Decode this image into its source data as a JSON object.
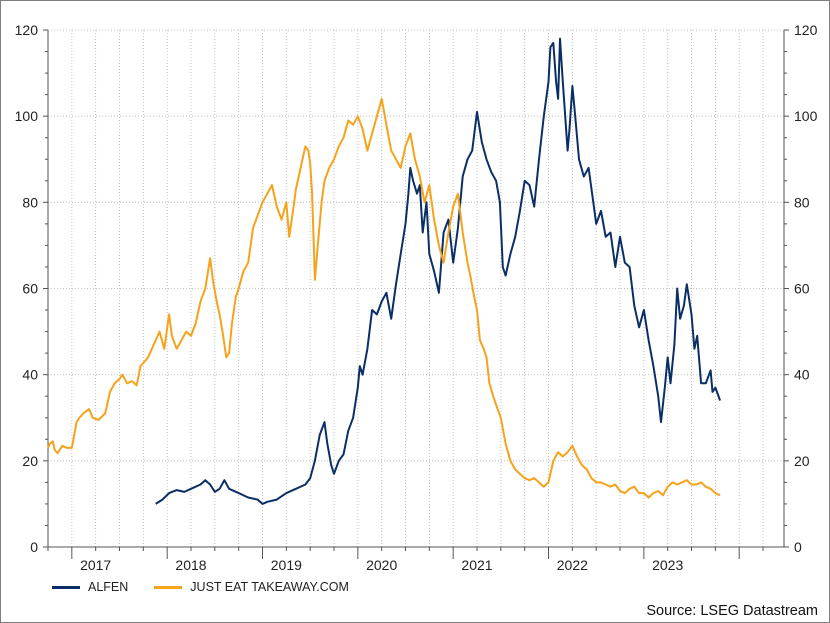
{
  "source": "Source: LSEG Datastream",
  "colors": {
    "alfen": "#0a2f66",
    "jet": "#f7a21b",
    "grid": "#b5b5b5",
    "axis": "#555555"
  },
  "chart_data": {
    "type": "line",
    "title": "",
    "xlabel": "",
    "ylabel": "",
    "xlim": [
      2016.25,
      2023.97
    ],
    "ylim": [
      0,
      120
    ],
    "yticks": [
      0,
      20,
      40,
      60,
      80,
      100,
      120
    ],
    "xtick_labels": [
      "2017",
      "2018",
      "2019",
      "2020",
      "2021",
      "2022",
      "2023"
    ],
    "xtick_label_positions": [
      2016.75,
      2017.75,
      2018.75,
      2019.75,
      2020.75,
      2021.75,
      2022.75
    ],
    "year_boundaries": [
      2016.5,
      2017.5,
      2018.5,
      2019.5,
      2020.5,
      2021.5,
      2022.5,
      2023.5
    ],
    "grid": true,
    "dual_y_axis": true,
    "legend_position": "bottom-left",
    "series": [
      {
        "name": "ALFEN",
        "color": "#0a2f66",
        "points": [
          [
            2017.38,
            10.0
          ],
          [
            2017.45,
            11.0
          ],
          [
            2017.52,
            12.5
          ],
          [
            2017.6,
            13.2
          ],
          [
            2017.68,
            12.8
          ],
          [
            2017.75,
            13.5
          ],
          [
            2017.85,
            14.5
          ],
          [
            2017.9,
            15.5
          ],
          [
            2017.95,
            14.5
          ],
          [
            2018.0,
            12.8
          ],
          [
            2018.05,
            13.5
          ],
          [
            2018.1,
            15.5
          ],
          [
            2018.15,
            13.5
          ],
          [
            2018.25,
            12.5
          ],
          [
            2018.35,
            11.5
          ],
          [
            2018.45,
            11.0
          ],
          [
            2018.5,
            10.0
          ],
          [
            2018.55,
            10.5
          ],
          [
            2018.65,
            11.0
          ],
          [
            2018.75,
            12.5
          ],
          [
            2018.85,
            13.5
          ],
          [
            2018.95,
            14.5
          ],
          [
            2019.0,
            16.0
          ],
          [
            2019.05,
            20.0
          ],
          [
            2019.1,
            26.0
          ],
          [
            2019.15,
            29.0
          ],
          [
            2019.18,
            24.0
          ],
          [
            2019.22,
            19.0
          ],
          [
            2019.25,
            17.0
          ],
          [
            2019.3,
            20.0
          ],
          [
            2019.35,
            21.5
          ],
          [
            2019.4,
            27.0
          ],
          [
            2019.45,
            30.0
          ],
          [
            2019.5,
            37.0
          ],
          [
            2019.52,
            42.0
          ],
          [
            2019.55,
            40.0
          ],
          [
            2019.6,
            46.0
          ],
          [
            2019.65,
            55.0
          ],
          [
            2019.7,
            54.0
          ],
          [
            2019.75,
            57.0
          ],
          [
            2019.8,
            59.0
          ],
          [
            2019.85,
            53.0
          ],
          [
            2019.9,
            61.0
          ],
          [
            2019.95,
            68.0
          ],
          [
            2020.0,
            75.0
          ],
          [
            2020.03,
            82.0
          ],
          [
            2020.05,
            88.0
          ],
          [
            2020.08,
            85.0
          ],
          [
            2020.12,
            82.0
          ],
          [
            2020.15,
            84.0
          ],
          [
            2020.18,
            73.0
          ],
          [
            2020.22,
            80.0
          ],
          [
            2020.25,
            68.0
          ],
          [
            2020.3,
            64.0
          ],
          [
            2020.35,
            59.0
          ],
          [
            2020.4,
            73.0
          ],
          [
            2020.45,
            76.0
          ],
          [
            2020.5,
            66.0
          ],
          [
            2020.55,
            74.0
          ],
          [
            2020.6,
            86.0
          ],
          [
            2020.65,
            90.0
          ],
          [
            2020.7,
            92.0
          ],
          [
            2020.75,
            101.0
          ],
          [
            2020.8,
            94.0
          ],
          [
            2020.85,
            90.0
          ],
          [
            2020.9,
            87.0
          ],
          [
            2020.95,
            85.0
          ],
          [
            2020.99,
            80.0
          ],
          [
            2021.02,
            65.0
          ],
          [
            2021.05,
            63.0
          ],
          [
            2021.1,
            68.0
          ],
          [
            2021.15,
            72.0
          ],
          [
            2021.2,
            78.0
          ],
          [
            2021.25,
            85.0
          ],
          [
            2021.3,
            84.0
          ],
          [
            2021.35,
            79.0
          ],
          [
            2021.4,
            90.0
          ],
          [
            2021.45,
            100.0
          ],
          [
            2021.5,
            108.0
          ],
          [
            2021.52,
            116.0
          ],
          [
            2021.55,
            117.0
          ],
          [
            2021.58,
            108.0
          ],
          [
            2021.6,
            104.0
          ],
          [
            2021.62,
            118.0
          ],
          [
            2021.65,
            108.0
          ],
          [
            2021.7,
            92.0
          ],
          [
            2021.72,
            97.0
          ],
          [
            2021.75,
            107.0
          ],
          [
            2021.78,
            100.0
          ],
          [
            2021.82,
            90.0
          ],
          [
            2021.87,
            86.0
          ],
          [
            2021.92,
            88.0
          ],
          [
            2021.97,
            80.0
          ],
          [
            2022.0,
            75.0
          ],
          [
            2022.05,
            78.0
          ],
          [
            2022.1,
            72.0
          ],
          [
            2022.15,
            73.0
          ],
          [
            2022.2,
            65.0
          ],
          [
            2022.25,
            72.0
          ],
          [
            2022.3,
            66.0
          ],
          [
            2022.35,
            65.0
          ],
          [
            2022.4,
            56.0
          ],
          [
            2022.45,
            51.0
          ],
          [
            2022.5,
            55.0
          ],
          [
            2022.55,
            48.0
          ],
          [
            2022.6,
            42.0
          ],
          [
            2022.65,
            35.0
          ],
          [
            2022.68,
            29.0
          ],
          [
            2022.72,
            37.0
          ],
          [
            2022.75,
            44.0
          ],
          [
            2022.78,
            38.0
          ],
          [
            2022.82,
            47.0
          ],
          [
            2022.85,
            60.0
          ],
          [
            2022.88,
            53.0
          ],
          [
            2022.92,
            56.0
          ],
          [
            2022.95,
            61.0
          ],
          [
            2023.0,
            54.0
          ],
          [
            2023.03,
            46.0
          ],
          [
            2023.06,
            49.0
          ],
          [
            2023.1,
            38.0
          ],
          [
            2023.15,
            38.0
          ],
          [
            2023.2,
            41.0
          ],
          [
            2023.22,
            36.0
          ],
          [
            2023.25,
            37.0
          ],
          [
            2023.3,
            34.0
          ]
        ]
      },
      {
        "name": "JUST EAT TAKEAWAY.COM",
        "color": "#f7a21b",
        "points": [
          [
            2016.25,
            23.0
          ],
          [
            2016.27,
            24.0
          ],
          [
            2016.3,
            24.5
          ],
          [
            2016.32,
            22.5
          ],
          [
            2016.35,
            21.8
          ],
          [
            2016.4,
            23.5
          ],
          [
            2016.45,
            23.0
          ],
          [
            2016.5,
            23.0
          ],
          [
            2016.55,
            29.0
          ],
          [
            2016.58,
            30.0
          ],
          [
            2016.62,
            31.0
          ],
          [
            2016.68,
            32.0
          ],
          [
            2016.72,
            30.0
          ],
          [
            2016.78,
            29.5
          ],
          [
            2016.85,
            31.0
          ],
          [
            2016.9,
            36.0
          ],
          [
            2016.95,
            38.0
          ],
          [
            2017.0,
            39.0
          ],
          [
            2017.03,
            40.0
          ],
          [
            2017.08,
            38.0
          ],
          [
            2017.13,
            38.5
          ],
          [
            2017.18,
            37.5
          ],
          [
            2017.22,
            42.0
          ],
          [
            2017.3,
            44.0
          ],
          [
            2017.38,
            48.0
          ],
          [
            2017.42,
            50.0
          ],
          [
            2017.47,
            46.0
          ],
          [
            2017.52,
            54.0
          ],
          [
            2017.55,
            49.0
          ],
          [
            2017.6,
            46.0
          ],
          [
            2017.65,
            48.0
          ],
          [
            2017.7,
            50.0
          ],
          [
            2017.75,
            49.0
          ],
          [
            2017.8,
            52.0
          ],
          [
            2017.85,
            57.0
          ],
          [
            2017.9,
            60.0
          ],
          [
            2017.95,
            67.0
          ],
          [
            2017.98,
            62.0
          ],
          [
            2018.02,
            57.0
          ],
          [
            2018.05,
            54.0
          ],
          [
            2018.08,
            50.0
          ],
          [
            2018.12,
            44.0
          ],
          [
            2018.15,
            45.0
          ],
          [
            2018.18,
            52.0
          ],
          [
            2018.22,
            58.0
          ],
          [
            2018.25,
            60.0
          ],
          [
            2018.3,
            64.0
          ],
          [
            2018.35,
            66.0
          ],
          [
            2018.4,
            74.0
          ],
          [
            2018.45,
            77.0
          ],
          [
            2018.5,
            80.0
          ],
          [
            2018.55,
            82.0
          ],
          [
            2018.6,
            84.0
          ],
          [
            2018.65,
            79.0
          ],
          [
            2018.7,
            76.0
          ],
          [
            2018.75,
            80.0
          ],
          [
            2018.78,
            72.0
          ],
          [
            2018.82,
            78.0
          ],
          [
            2018.85,
            83.0
          ],
          [
            2018.88,
            86.0
          ],
          [
            2018.95,
            93.0
          ],
          [
            2018.98,
            92.0
          ],
          [
            2019.0,
            89.0
          ],
          [
            2019.02,
            82.0
          ],
          [
            2019.05,
            62.0
          ],
          [
            2019.08,
            70.0
          ],
          [
            2019.12,
            80.0
          ],
          [
            2019.15,
            85.0
          ],
          [
            2019.2,
            88.0
          ],
          [
            2019.25,
            90.0
          ],
          [
            2019.3,
            93.0
          ],
          [
            2019.35,
            95.0
          ],
          [
            2019.4,
            99.0
          ],
          [
            2019.45,
            98.0
          ],
          [
            2019.5,
            100.0
          ],
          [
            2019.55,
            97.0
          ],
          [
            2019.6,
            92.0
          ],
          [
            2019.65,
            96.0
          ],
          [
            2019.7,
            100.0
          ],
          [
            2019.75,
            104.0
          ],
          [
            2019.8,
            98.0
          ],
          [
            2019.85,
            92.0
          ],
          [
            2019.9,
            90.0
          ],
          [
            2019.95,
            88.0
          ],
          [
            2020.0,
            93.0
          ],
          [
            2020.05,
            96.0
          ],
          [
            2020.1,
            90.0
          ],
          [
            2020.15,
            86.0
          ],
          [
            2020.2,
            80.0
          ],
          [
            2020.25,
            84.0
          ],
          [
            2020.3,
            76.0
          ],
          [
            2020.35,
            70.0
          ],
          [
            2020.4,
            66.0
          ],
          [
            2020.45,
            73.0
          ],
          [
            2020.5,
            79.0
          ],
          [
            2020.55,
            82.0
          ],
          [
            2020.6,
            73.0
          ],
          [
            2020.65,
            66.0
          ],
          [
            2020.68,
            63.0
          ],
          [
            2020.72,
            58.0
          ],
          [
            2020.75,
            55.0
          ],
          [
            2020.78,
            48.0
          ],
          [
            2020.82,
            46.0
          ],
          [
            2020.85,
            44.0
          ],
          [
            2020.88,
            38.0
          ],
          [
            2020.92,
            35.0
          ],
          [
            2020.95,
            33.0
          ],
          [
            2021.0,
            30.0
          ],
          [
            2021.05,
            24.0
          ],
          [
            2021.1,
            20.0
          ],
          [
            2021.15,
            18.0
          ],
          [
            2021.2,
            17.0
          ],
          [
            2021.25,
            16.0
          ],
          [
            2021.3,
            15.5
          ],
          [
            2021.35,
            16.0
          ],
          [
            2021.4,
            15.0
          ],
          [
            2021.45,
            14.0
          ],
          [
            2021.5,
            15.0
          ],
          [
            2021.55,
            20.0
          ],
          [
            2021.6,
            22.0
          ],
          [
            2021.65,
            21.0
          ],
          [
            2021.7,
            22.0
          ],
          [
            2021.75,
            23.5
          ],
          [
            2021.8,
            21.0
          ],
          [
            2021.85,
            19.0
          ],
          [
            2021.9,
            18.0
          ],
          [
            2021.95,
            16.0
          ],
          [
            2022.0,
            15.0
          ],
          [
            2022.05,
            15.0
          ],
          [
            2022.1,
            14.5
          ],
          [
            2022.15,
            14.0
          ],
          [
            2022.2,
            14.5
          ],
          [
            2022.25,
            13.0
          ],
          [
            2022.3,
            12.5
          ],
          [
            2022.35,
            13.5
          ],
          [
            2022.4,
            14.0
          ],
          [
            2022.45,
            12.5
          ],
          [
            2022.5,
            12.5
          ],
          [
            2022.55,
            11.5
          ],
          [
            2022.6,
            12.5
          ],
          [
            2022.65,
            13.0
          ],
          [
            2022.7,
            12.0
          ],
          [
            2022.75,
            14.0
          ],
          [
            2022.8,
            15.0
          ],
          [
            2022.85,
            14.5
          ],
          [
            2022.9,
            15.0
          ],
          [
            2022.95,
            15.5
          ],
          [
            2023.0,
            14.5
          ],
          [
            2023.05,
            14.5
          ],
          [
            2023.1,
            15.0
          ],
          [
            2023.15,
            14.0
          ],
          [
            2023.2,
            13.5
          ],
          [
            2023.25,
            12.5
          ],
          [
            2023.3,
            12.0
          ]
        ]
      }
    ]
  }
}
